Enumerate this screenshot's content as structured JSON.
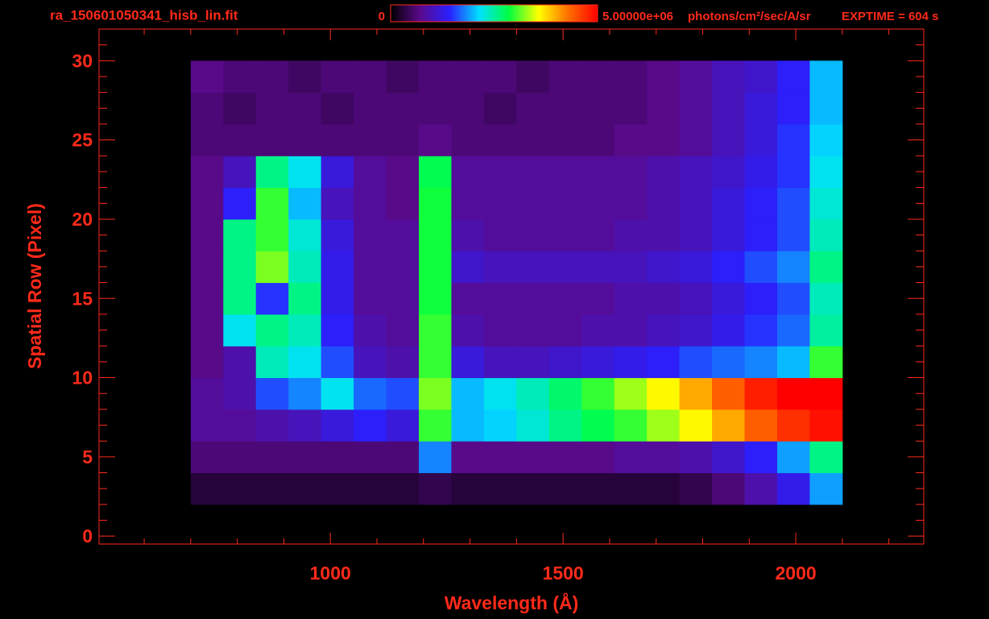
{
  "chart_data": {
    "type": "heatmap",
    "title": "ra_150601050341_hisb_lin.fit",
    "annotation": "EXPTIME = 604 s",
    "x_label": "Wavelength (Å)",
    "y_label": "Spatial Row (Pixel)",
    "colorbar_unit": "photons/cm²/sec/A/sr",
    "clim": [
      0,
      5000000
    ],
    "cticks": [
      0,
      {
        "value": 5000000,
        "label": "5.00000e+06"
      }
    ],
    "colormap": [
      "#000000",
      "#5a0a8c",
      "#2a20ff",
      "#00e0ff",
      "#00ff40",
      "#ffff00",
      "#ff7000",
      "#ff0000"
    ],
    "xlim": [
      503,
      2275
    ],
    "ylim": [
      -0.5,
      32
    ],
    "xticks": [
      1000,
      1500,
      2000
    ],
    "yticks": [
      0,
      5,
      10,
      15,
      20,
      25,
      30
    ],
    "xminorticks": [
      600,
      700,
      800,
      900,
      1100,
      1200,
      1300,
      1400,
      1600,
      1700,
      1800,
      1900,
      2100,
      2200
    ],
    "yminorticks": [
      1,
      2,
      3,
      4,
      6,
      7,
      8,
      9,
      11,
      12,
      13,
      14,
      16,
      17,
      18,
      19,
      21,
      22,
      23,
      24,
      26,
      27,
      28,
      29,
      31
    ],
    "x_edges": [
      700,
      770,
      840,
      910,
      980,
      1050,
      1120,
      1190,
      1260,
      1330,
      1400,
      1470,
      1540,
      1610,
      1680,
      1750,
      1820,
      1890,
      1960,
      2030,
      2100
    ],
    "y_edges": [
      2,
      4,
      6,
      8,
      10,
      12,
      14,
      16,
      18,
      20,
      22,
      24,
      26,
      28,
      30
    ],
    "z": [
      [
        300000.0,
        300000.0,
        300000.0,
        300000.0,
        300000.0,
        300000.0,
        300000.0,
        400000.0,
        300000.0,
        300000.0,
        300000.0,
        300000.0,
        300000.0,
        300000.0,
        300000.0,
        400000.0,
        600000.0,
        900000.0,
        1300000.0,
        1900000.0
      ],
      [
        600000.0,
        600000.0,
        600000.0,
        600000.0,
        600000.0,
        600000.0,
        600000.0,
        1800000.0,
        700000.0,
        700000.0,
        700000.0,
        700000.0,
        700000.0,
        800000.0,
        800000.0,
        900000.0,
        1100000.0,
        1400000.0,
        1900000.0,
        2600000.0
      ],
      [
        800000.0,
        800000.0,
        900000.0,
        1000000.0,
        1200000.0,
        1400000.0,
        1200000.0,
        3000000.0,
        2000000.0,
        2100000.0,
        2300000.0,
        2600000.0,
        2800000.0,
        3000000.0,
        3300000.0,
        3600000.0,
        4000000.0,
        4400000.0,
        4700000.0,
        4900000.0
      ],
      [
        800000.0,
        900000.0,
        1600000.0,
        1800000.0,
        2200000.0,
        1700000.0,
        1600000.0,
        3200000.0,
        2000000.0,
        2200000.0,
        2400000.0,
        2700000.0,
        3000000.0,
        3300000.0,
        3600000.0,
        4000000.0,
        4400000.0,
        4800000.0,
        5000000.0,
        5000000.0
      ],
      [
        700000.0,
        900000.0,
        2400000.0,
        2200000.0,
        1600000.0,
        1000000.0,
        900000.0,
        3000000.0,
        1200000.0,
        1000000.0,
        1000000.0,
        1100000.0,
        1200000.0,
        1300000.0,
        1400000.0,
        1600000.0,
        1700000.0,
        1800000.0,
        2000000.0,
        3000000.0
      ],
      [
        700000.0,
        2200000.0,
        2600000.0,
        2400000.0,
        1400000.0,
        900000.0,
        800000.0,
        3000000.0,
        900000.0,
        800000.0,
        800000.0,
        800000.0,
        900000.0,
        900000.0,
        1000000.0,
        1100000.0,
        1300000.0,
        1500000.0,
        1700000.0,
        2500000.0
      ],
      [
        700000.0,
        2600000.0,
        1500000.0,
        2600000.0,
        1300000.0,
        800000.0,
        800000.0,
        2900000.0,
        800000.0,
        800000.0,
        800000.0,
        800000.0,
        800000.0,
        900000.0,
        900000.0,
        1000000.0,
        1200000.0,
        1400000.0,
        1600000.0,
        2400000.0
      ],
      [
        700000.0,
        2600000.0,
        3200000.0,
        2400000.0,
        1300000.0,
        800000.0,
        800000.0,
        2900000.0,
        1100000.0,
        1000000.0,
        1000000.0,
        1000000.0,
        1000000.0,
        1000000.0,
        1100000.0,
        1200000.0,
        1400000.0,
        1600000.0,
        1800000.0,
        2600000.0
      ],
      [
        700000.0,
        2600000.0,
        3000000.0,
        2300000.0,
        1200000.0,
        800000.0,
        800000.0,
        2900000.0,
        900000.0,
        800000.0,
        800000.0,
        800000.0,
        800000.0,
        900000.0,
        900000.0,
        1000000.0,
        1200000.0,
        1400000.0,
        1600000.0,
        2400000.0
      ],
      [
        700000.0,
        1400000.0,
        3000000.0,
        2000000.0,
        1000000.0,
        800000.0,
        700000.0,
        2900000.0,
        800000.0,
        800000.0,
        800000.0,
        800000.0,
        800000.0,
        800000.0,
        900000.0,
        1000000.0,
        1200000.0,
        1400000.0,
        1600000.0,
        2300000.0
      ],
      [
        700000.0,
        1000000.0,
        2600000.0,
        2200000.0,
        1200000.0,
        800000.0,
        700000.0,
        2800000.0,
        800000.0,
        800000.0,
        800000.0,
        800000.0,
        800000.0,
        800000.0,
        900000.0,
        1000000.0,
        1100000.0,
        1300000.0,
        1500000.0,
        2200000.0
      ],
      [
        600000.0,
        600000.0,
        600000.0,
        600000.0,
        600000.0,
        600000.0,
        600000.0,
        700000.0,
        600000.0,
        600000.0,
        600000.0,
        600000.0,
        600000.0,
        700000.0,
        700000.0,
        800000.0,
        1000000.0,
        1200000.0,
        1500000.0,
        2100000.0
      ],
      [
        600000.0,
        500000.0,
        600000.0,
        600000.0,
        500000.0,
        600000.0,
        600000.0,
        600000.0,
        600000.0,
        500000.0,
        600000.0,
        600000.0,
        600000.0,
        600000.0,
        700000.0,
        800000.0,
        1000000.0,
        1200000.0,
        1400000.0,
        2000000.0
      ],
      [
        700000.0,
        600000.0,
        600000.0,
        500000.0,
        600000.0,
        600000.0,
        500000.0,
        600000.0,
        600000.0,
        600000.0,
        500000.0,
        600000.0,
        600000.0,
        600000.0,
        700000.0,
        800000.0,
        1000000.0,
        1100000.0,
        1400000.0,
        2000000.0
      ]
    ]
  }
}
